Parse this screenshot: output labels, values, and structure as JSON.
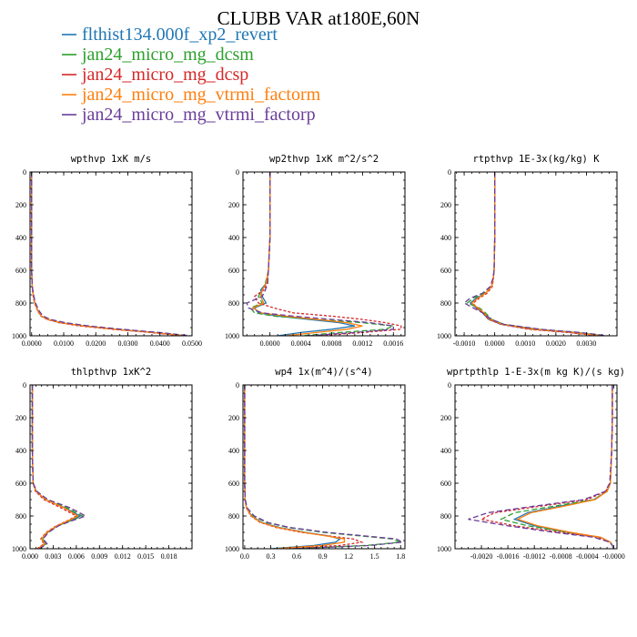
{
  "figure": {
    "title": "CLUBB VAR at180E,60N"
  },
  "legend": [
    {
      "label": "flthist134.000f_xp2_revert",
      "color": "#1f77b4",
      "dash": "solid"
    },
    {
      "label": "jan24_micro_mg_dcsm",
      "color": "#2ca02c",
      "dash": "long"
    },
    {
      "label": "jan24_micro_mg_dcsp",
      "color": "#d62728",
      "dash": "short"
    },
    {
      "label": "jan24_micro_mg_vtrmi_factorm",
      "color": "#ff7f0e",
      "dash": "solid"
    },
    {
      "label": "jan24_micro_mg_vtrmi_factorp",
      "color": "#6a3d9a",
      "dash": "long"
    }
  ],
  "chart_data": [
    {
      "type": "line",
      "title": "wpthvp  1xK m/s",
      "xlim": [
        -0.0005,
        0.05
      ],
      "ylim": [
        0,
        1000
      ],
      "y_reversed": true,
      "xticks": [
        "0.0000",
        "0.0100",
        "0.0200",
        "0.0300",
        "0.0400",
        "0.0500"
      ],
      "xtick_values": [
        0,
        0.01,
        0.02,
        0.03,
        0.04,
        0.05
      ],
      "yticks": [
        "0",
        "200",
        "400",
        "600",
        "800",
        "1000"
      ],
      "ytick_values": [
        0,
        200,
        400,
        600,
        800,
        1000
      ],
      "y": [
        0,
        200,
        400,
        600,
        700,
        750,
        800,
        850,
        880,
        900,
        920,
        940,
        960,
        980,
        1000
      ],
      "series": [
        {
          "values": [
            0,
            0,
            0,
            0,
            0.0002,
            0.0005,
            0.001,
            0.002,
            0.003,
            0.005,
            0.009,
            0.016,
            0.026,
            0.038,
            0.048
          ]
        },
        {
          "values": [
            0,
            0,
            0,
            0,
            0.0002,
            0.0005,
            0.0011,
            0.0022,
            0.0033,
            0.0055,
            0.01,
            0.017,
            0.027,
            0.039,
            0.049
          ]
        },
        {
          "values": [
            0,
            0,
            0,
            0,
            0.0002,
            0.0004,
            0.0009,
            0.0019,
            0.0029,
            0.0048,
            0.0085,
            0.015,
            0.025,
            0.037,
            0.047
          ]
        },
        {
          "values": [
            0,
            0,
            0,
            0,
            0.0002,
            0.0005,
            0.001,
            0.002,
            0.0031,
            0.0051,
            0.0092,
            0.0162,
            0.0262,
            0.0382,
            0.0482
          ]
        },
        {
          "values": [
            0,
            0,
            0,
            0,
            0.0002,
            0.0006,
            0.0012,
            0.0024,
            0.0036,
            0.0058,
            0.0105,
            0.0178,
            0.028,
            0.04,
            0.0495
          ]
        }
      ]
    },
    {
      "type": "line",
      "title": "wp2thvp  1xK m^2/s^2",
      "xlim": [
        -0.00035,
        0.00175
      ],
      "ylim": [
        0,
        1000
      ],
      "y_reversed": true,
      "xticks": [
        "0.0000",
        "0.0004",
        "0.0008",
        "0.0012",
        "0.0016"
      ],
      "xtick_values": [
        0,
        0.0004,
        0.0008,
        0.0012,
        0.0016
      ],
      "yticks": [
        "0",
        "200",
        "400",
        "600",
        "800",
        "1000"
      ],
      "ytick_values": [
        0,
        200,
        400,
        600,
        800,
        1000
      ],
      "y": [
        0,
        200,
        400,
        600,
        680,
        720,
        760,
        800,
        830,
        860,
        880,
        900,
        920,
        940,
        960,
        980,
        1000
      ],
      "series": [
        {
          "values": [
            0,
            0,
            0,
            -2e-05,
            -5e-05,
            -0.00012,
            -0.0001,
            -5e-05,
            -0.0002,
            -0.00015,
            0.0001,
            0.0005,
            0.0009,
            0.0011,
            0.0008,
            0.0004,
            0.0001
          ]
        },
        {
          "values": [
            0,
            0,
            0,
            -2e-05,
            -6e-05,
            -0.0001,
            -0.00015,
            -0.0001,
            -0.00025,
            -0.0002,
            5e-05,
            0.0006,
            0.0012,
            0.0016,
            0.0015,
            0.0009,
            0.0004
          ]
        },
        {
          "values": [
            0,
            0,
            0,
            -2e-05,
            -4e-05,
            -8e-05,
            -0.0002,
            -0.00015,
            5e-05,
            0.0003,
            0.0008,
            0.0012,
            0.0015,
            0.0017,
            0.0017,
            0.0012,
            0.0006
          ]
        },
        {
          "values": [
            0,
            0,
            0,
            -2e-05,
            -5e-05,
            -0.0001,
            -0.00012,
            -8e-05,
            -0.00022,
            -0.00012,
            0.0002,
            0.0006,
            0.001,
            0.0012,
            0.001,
            0.0006,
            0.0002
          ]
        },
        {
          "values": [
            0,
            0,
            0,
            -2e-05,
            -3e-05,
            -6e-05,
            -0.0001,
            -0.0003,
            -0.00028,
            -0.0001,
            0.0003,
            0.0008,
            0.0013,
            0.0016,
            0.0016,
            0.0011,
            0.0005
          ]
        }
      ]
    },
    {
      "type": "line",
      "title": "rtpthvp  1E-3x(kg/kg) K",
      "xlim": [
        -0.0013,
        0.004
      ],
      "ylim": [
        0,
        1000
      ],
      "y_reversed": true,
      "xticks": [
        "-0.0010",
        "0.0000",
        "0.0010",
        "0.0020",
        "0.0030"
      ],
      "xtick_values": [
        -0.001,
        0,
        0.001,
        0.002,
        0.003
      ],
      "yticks": [
        "0",
        "200",
        "400",
        "600",
        "800",
        "1000"
      ],
      "ytick_values": [
        0,
        200,
        400,
        600,
        800,
        1000
      ],
      "y": [
        0,
        200,
        400,
        600,
        650,
        700,
        740,
        770,
        800,
        830,
        860,
        900,
        930,
        960,
        980,
        1000
      ],
      "series": [
        {
          "values": [
            0,
            0,
            0,
            -2e-05,
            -5e-05,
            -0.0001,
            -0.0003,
            -0.0006,
            -0.0008,
            -0.0006,
            -0.0004,
            -0.0002,
            0.0002,
            0.0012,
            0.0025,
            0.0035
          ]
        },
        {
          "values": [
            0,
            0,
            0,
            -2e-05,
            -5e-05,
            -0.00012,
            -0.00035,
            -0.0007,
            -0.0009,
            -0.0005,
            -0.0003,
            -0.0001,
            0.0003,
            0.0014,
            0.0027,
            0.0036
          ]
        },
        {
          "values": [
            0,
            0,
            0,
            -2e-05,
            -4e-05,
            -8e-05,
            -0.00025,
            -0.0005,
            -0.0007,
            -0.0006,
            -0.0004,
            -0.0002,
            0.0002,
            0.0011,
            0.0024,
            0.0034
          ]
        },
        {
          "values": [
            0,
            0,
            0,
            -2e-05,
            -5e-05,
            -0.0001,
            -0.0003,
            -0.00055,
            -0.00075,
            -0.00055,
            -0.00035,
            -0.00015,
            0.00025,
            0.0013,
            0.0026,
            0.0035
          ]
        },
        {
          "values": [
            0,
            0,
            0,
            -2e-05,
            -6e-05,
            -0.00015,
            -0.0004,
            -0.0008,
            -0.001,
            -0.0007,
            -0.0004,
            -0.0001,
            0.0003,
            0.0015,
            0.0028,
            0.0037
          ]
        }
      ]
    },
    {
      "type": "line",
      "title": "thlpthvp  1xK^2",
      "xlim": [
        0,
        0.021
      ],
      "ylim": [
        0,
        1000
      ],
      "y_reversed": true,
      "xticks": [
        "0.000",
        "0.003",
        "0.006",
        "0.009",
        "0.012",
        "0.015",
        "0.018"
      ],
      "xtick_values": [
        0,
        0.003,
        0.006,
        0.009,
        0.012,
        0.015,
        0.018
      ],
      "yticks": [
        "0",
        "200",
        "400",
        "600",
        "800",
        "1000"
      ],
      "ytick_values": [
        0,
        200,
        400,
        600,
        800,
        1000
      ],
      "y": [
        0,
        200,
        400,
        600,
        650,
        700,
        750,
        800,
        830,
        860,
        900,
        940,
        970,
        1000
      ],
      "series": [
        {
          "values": [
            0.0003,
            0.0003,
            0.0003,
            0.0004,
            0.0008,
            0.002,
            0.0045,
            0.0065,
            0.005,
            0.0035,
            0.0022,
            0.0015,
            0.002,
            0.001
          ]
        },
        {
          "values": [
            0.0003,
            0.0003,
            0.0003,
            0.0004,
            0.0008,
            0.0021,
            0.0048,
            0.0068,
            0.0052,
            0.0036,
            0.0023,
            0.0016,
            0.0021,
            0.0011
          ]
        },
        {
          "values": [
            0.0003,
            0.0003,
            0.0003,
            0.0004,
            0.0007,
            0.0018,
            0.004,
            0.006,
            0.0048,
            0.0034,
            0.0021,
            0.0014,
            0.0018,
            0.0009
          ]
        },
        {
          "values": [
            0.0003,
            0.0003,
            0.0003,
            0.0004,
            0.0008,
            0.002,
            0.0044,
            0.0062,
            0.0049,
            0.0035,
            0.0022,
            0.0015,
            0.0019,
            0.001
          ]
        },
        {
          "values": [
            0.0003,
            0.0003,
            0.0003,
            0.0004,
            0.0009,
            0.0023,
            0.0052,
            0.0072,
            0.0054,
            0.0037,
            0.0024,
            0.0017,
            0.0022,
            0.0012
          ]
        }
      ]
    },
    {
      "type": "line",
      "title": "wp4  1x(m^4)/(s^4)",
      "xlim": [
        -0.02,
        1.85
      ],
      "ylim": [
        0,
        1000
      ],
      "y_reversed": true,
      "xticks": [
        "0.0",
        "0.3",
        "0.6",
        "0.9",
        "1.2",
        "1.5",
        "1.8"
      ],
      "xtick_values": [
        0,
        0.3,
        0.6,
        0.9,
        1.2,
        1.5,
        1.8
      ],
      "yticks": [
        "0",
        "200",
        "400",
        "600",
        "800",
        "1000"
      ],
      "ytick_values": [
        0,
        200,
        400,
        600,
        800,
        1000
      ],
      "y": [
        0,
        200,
        400,
        600,
        700,
        750,
        800,
        840,
        870,
        900,
        920,
        940,
        960,
        980,
        1000
      ],
      "series": [
        {
          "values": [
            0,
            0,
            0,
            0,
            0.005,
            0.02,
            0.08,
            0.2,
            0.4,
            0.7,
            0.95,
            1.1,
            1.05,
            0.8,
            0.3
          ]
        },
        {
          "values": [
            0,
            0,
            0,
            0,
            0.006,
            0.025,
            0.1,
            0.25,
            0.5,
            0.9,
            1.3,
            1.7,
            1.8,
            1.4,
            0.5
          ]
        },
        {
          "values": [
            0,
            0,
            0,
            0,
            0.004,
            0.018,
            0.07,
            0.18,
            0.36,
            0.65,
            0.95,
            1.25,
            1.35,
            1.1,
            0.4
          ]
        },
        {
          "values": [
            0,
            0,
            0,
            0,
            0.005,
            0.02,
            0.075,
            0.19,
            0.38,
            0.68,
            0.92,
            1.15,
            1.15,
            0.9,
            0.35
          ]
        },
        {
          "values": [
            0,
            0,
            0,
            0,
            0.006,
            0.028,
            0.11,
            0.27,
            0.52,
            0.95,
            1.35,
            1.75,
            1.82,
            1.45,
            0.55
          ]
        }
      ]
    },
    {
      "type": "line",
      "title": "wprtpthlp  1-E-3x(m kg K)/(s kg)",
      "xlim": [
        -0.0024,
        5e-05
      ],
      "ylim": [
        0,
        1000
      ],
      "y_reversed": true,
      "xticks": [
        "-0.0020",
        "-0.0016",
        "-0.0012",
        "-0.0008",
        "-0.0004",
        "-0.0000"
      ],
      "xtick_values": [
        -0.002,
        -0.0016,
        -0.0012,
        -0.0008,
        -0.0004,
        0
      ],
      "yticks": [
        "0",
        "200",
        "400",
        "600",
        "800",
        "1000"
      ],
      "ytick_values": [
        0,
        200,
        400,
        600,
        800,
        1000
      ],
      "y": [
        0,
        200,
        400,
        600,
        650,
        700,
        740,
        780,
        820,
        860,
        900,
        930,
        960,
        980,
        1000
      ],
      "series": [
        {
          "values": [
            -2e-05,
            -2e-05,
            -3e-05,
            -5e-05,
            -0.0001,
            -0.0003,
            -0.0008,
            -0.0013,
            -0.0015,
            -0.0012,
            -0.0007,
            -0.0002,
            -5e-05,
            -2e-05,
            0
          ]
        },
        {
          "values": [
            -2e-05,
            -2e-05,
            -3e-05,
            -5e-05,
            -0.0001,
            -0.0003,
            -0.0009,
            -0.0015,
            -0.0017,
            -0.0013,
            -0.0007,
            -0.0002,
            -5e-05,
            -2e-05,
            0
          ]
        },
        {
          "values": [
            -2e-05,
            -2e-05,
            -3e-05,
            -5e-05,
            -0.00012,
            -0.0004,
            -0.0011,
            -0.0018,
            -0.002,
            -0.0015,
            -0.0008,
            -0.00025,
            -5e-05,
            -2e-05,
            0
          ]
        },
        {
          "values": [
            -2e-05,
            -2e-05,
            -3e-05,
            -5e-05,
            -0.0001,
            -0.00028,
            -0.00075,
            -0.00125,
            -0.00145,
            -0.00115,
            -0.00065,
            -0.0002,
            -5e-05,
            -2e-05,
            0
          ]
        },
        {
          "values": [
            -2e-05,
            -2e-05,
            -3e-05,
            -6e-05,
            -0.00013,
            -0.00045,
            -0.0012,
            -0.0019,
            -0.0022,
            -0.0016,
            -0.0009,
            -0.0003,
            -6e-05,
            -2e-05,
            0
          ]
        }
      ]
    }
  ]
}
